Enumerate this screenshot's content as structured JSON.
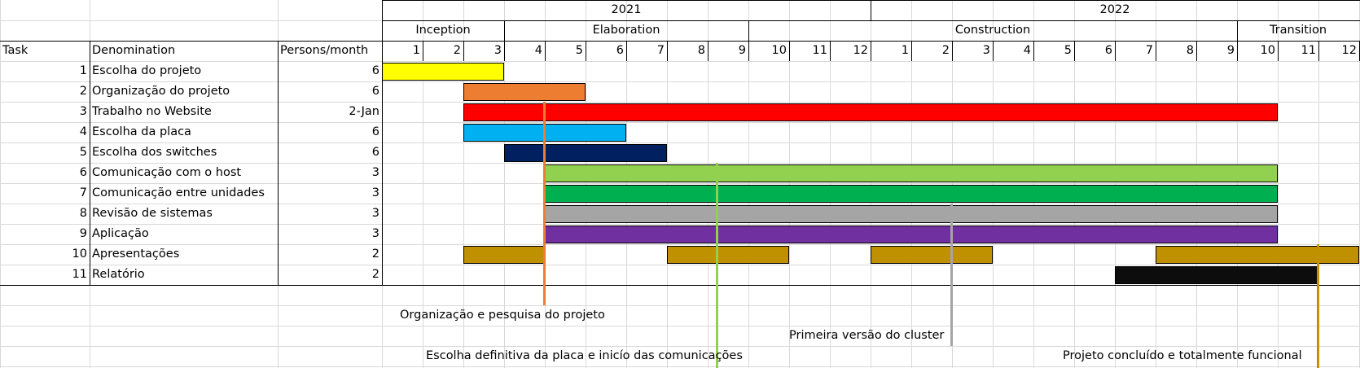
{
  "header": {
    "task_label": "Task",
    "denomination_label": "Denomination",
    "persons_label": "Persons/month"
  },
  "years": [
    {
      "label": "2021"
    },
    {
      "label": "2022"
    }
  ],
  "phases": [
    {
      "label": "Inception"
    },
    {
      "label": "Elaboration"
    },
    {
      "label": "Construction"
    },
    {
      "label": "Transition"
    }
  ],
  "months": [
    "1",
    "2",
    "3",
    "4",
    "5",
    "6",
    "7",
    "8",
    "9",
    "10",
    "11",
    "12",
    "1",
    "2",
    "3",
    "4",
    "5",
    "6",
    "7",
    "8",
    "9",
    "10",
    "11",
    "12"
  ],
  "tasks": [
    {
      "id": "1",
      "name": "Escolha do projeto",
      "persons": "6"
    },
    {
      "id": "2",
      "name": "Organização do projeto",
      "persons": "6"
    },
    {
      "id": "3",
      "name": "Trabalho no Website",
      "persons": "2-Jan"
    },
    {
      "id": "4",
      "name": "Escolha da placa",
      "persons": "6"
    },
    {
      "id": "5",
      "name": "Escolha dos switches",
      "persons": "6"
    },
    {
      "id": "6",
      "name": "Comunicação com o host",
      "persons": "3"
    },
    {
      "id": "7",
      "name": "Comunicação entre unidades",
      "persons": "3"
    },
    {
      "id": "8",
      "name": "Revisão de sistemas",
      "persons": "3"
    },
    {
      "id": "9",
      "name": "Aplicação",
      "persons": "3"
    },
    {
      "id": "10",
      "name": "Apresentações",
      "persons": "2"
    },
    {
      "id": "11",
      "name": "Relatório",
      "persons": "2"
    }
  ],
  "bars": [
    {
      "row": 0,
      "start": 1,
      "end": 3,
      "color": "#ffff00"
    },
    {
      "row": 1,
      "start": 3,
      "end": 5,
      "color": "#ed7d31"
    },
    {
      "row": 2,
      "start": 3,
      "end": 22,
      "color": "#ff0000"
    },
    {
      "row": 3,
      "start": 3,
      "end": 6,
      "color": "#00b0f0"
    },
    {
      "row": 4,
      "start": 4,
      "end": 7,
      "color": "#002060"
    },
    {
      "row": 5,
      "start": 5,
      "end": 22,
      "color": "#92d050"
    },
    {
      "row": 6,
      "start": 5,
      "end": 22,
      "color": "#00b050"
    },
    {
      "row": 7,
      "start": 5,
      "end": 22,
      "color": "#a5a5a5"
    },
    {
      "row": 8,
      "start": 5,
      "end": 22,
      "color": "#7030a0"
    },
    {
      "row": 9,
      "start": 3,
      "end": 4,
      "color": "#bf9000"
    },
    {
      "row": 9,
      "start": 8,
      "end": 10,
      "color": "#bf9000"
    },
    {
      "row": 9,
      "start": 13,
      "end": 15,
      "color": "#bf9000"
    },
    {
      "row": 9,
      "start": 20,
      "end": 24,
      "color": "#bf9000"
    },
    {
      "row": 10,
      "start": 19,
      "end": 23,
      "color": "#0d0d0d"
    }
  ],
  "milestones": [
    {
      "label": "Organização e pesquisa do projeto",
      "color": "#ed7d31"
    },
    {
      "label": "Escolha definitiva da placa e inicío das comunicações",
      "color": "#92d050"
    },
    {
      "label": "Primeira versão do cluster",
      "color": "#a5a5a5"
    },
    {
      "label": "Projeto concluído e totalmente funcional",
      "color": "#bf9000"
    }
  ]
}
